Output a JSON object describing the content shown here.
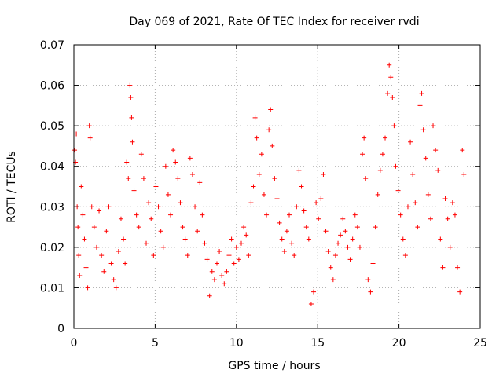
{
  "chart_data": {
    "type": "scatter",
    "title": "Day 069 of 2021, Rate Of TEC Index for receiver rvdi",
    "xlabel": "GPS time / hours",
    "ylabel": "ROTI / TECUs",
    "xlim": [
      0,
      25
    ],
    "ylim": [
      0,
      0.07
    ],
    "xticks": [
      "0",
      "5",
      "10",
      "15",
      "20",
      "25"
    ],
    "yticks": [
      "0",
      "0.01",
      "0.02",
      "0.03",
      "0.04",
      "0.05",
      "0.06",
      "0.07"
    ],
    "grid": true,
    "marker": "+",
    "color": "#ff0000",
    "series": [
      {
        "points": [
          [
            0.05,
            0.044
          ],
          [
            0.1,
            0.041
          ],
          [
            0.15,
            0.048
          ],
          [
            0.2,
            0.03
          ],
          [
            0.25,
            0.025
          ],
          [
            0.3,
            0.018
          ],
          [
            0.35,
            0.013
          ],
          [
            0.45,
            0.035
          ],
          [
            0.55,
            0.028
          ],
          [
            0.65,
            0.022
          ],
          [
            0.75,
            0.015
          ],
          [
            0.85,
            0.01
          ],
          [
            0.95,
            0.05
          ],
          [
            1.0,
            0.047
          ],
          [
            1.1,
            0.03
          ],
          [
            1.25,
            0.025
          ],
          [
            1.4,
            0.02
          ],
          [
            1.55,
            0.029
          ],
          [
            1.7,
            0.018
          ],
          [
            1.85,
            0.014
          ],
          [
            2.0,
            0.024
          ],
          [
            2.15,
            0.03
          ],
          [
            2.3,
            0.016
          ],
          [
            2.45,
            0.012
          ],
          [
            2.6,
            0.01
          ],
          [
            2.75,
            0.019
          ],
          [
            2.9,
            0.027
          ],
          [
            3.05,
            0.022
          ],
          [
            3.15,
            0.016
          ],
          [
            3.25,
            0.041
          ],
          [
            3.35,
            0.037
          ],
          [
            3.45,
            0.06
          ],
          [
            3.5,
            0.057
          ],
          [
            3.55,
            0.052
          ],
          [
            3.6,
            0.046
          ],
          [
            3.7,
            0.034
          ],
          [
            3.85,
            0.028
          ],
          [
            4.0,
            0.025
          ],
          [
            4.15,
            0.043
          ],
          [
            4.3,
            0.037
          ],
          [
            4.45,
            0.021
          ],
          [
            4.6,
            0.031
          ],
          [
            4.75,
            0.027
          ],
          [
            4.9,
            0.018
          ],
          [
            5.05,
            0.035
          ],
          [
            5.2,
            0.03
          ],
          [
            5.35,
            0.024
          ],
          [
            5.5,
            0.02
          ],
          [
            5.65,
            0.04
          ],
          [
            5.8,
            0.033
          ],
          [
            5.95,
            0.028
          ],
          [
            6.1,
            0.044
          ],
          [
            6.25,
            0.041
          ],
          [
            6.4,
            0.037
          ],
          [
            6.55,
            0.031
          ],
          [
            6.7,
            0.025
          ],
          [
            6.85,
            0.022
          ],
          [
            7.0,
            0.018
          ],
          [
            7.15,
            0.042
          ],
          [
            7.3,
            0.038
          ],
          [
            7.45,
            0.03
          ],
          [
            7.6,
            0.024
          ],
          [
            7.75,
            0.036
          ],
          [
            7.9,
            0.028
          ],
          [
            8.05,
            0.021
          ],
          [
            8.2,
            0.017
          ],
          [
            8.35,
            0.008
          ],
          [
            8.5,
            0.014
          ],
          [
            8.65,
            0.012
          ],
          [
            8.8,
            0.016
          ],
          [
            8.95,
            0.019
          ],
          [
            9.1,
            0.013
          ],
          [
            9.25,
            0.011
          ],
          [
            9.4,
            0.014
          ],
          [
            9.55,
            0.018
          ],
          [
            9.7,
            0.022
          ],
          [
            9.85,
            0.016
          ],
          [
            10.0,
            0.02
          ],
          [
            10.15,
            0.017
          ],
          [
            10.3,
            0.021
          ],
          [
            10.45,
            0.025
          ],
          [
            10.6,
            0.023
          ],
          [
            10.75,
            0.018
          ],
          [
            10.9,
            0.031
          ],
          [
            11.05,
            0.035
          ],
          [
            11.15,
            0.052
          ],
          [
            11.25,
            0.047
          ],
          [
            11.4,
            0.038
          ],
          [
            11.55,
            0.043
          ],
          [
            11.7,
            0.033
          ],
          [
            11.85,
            0.028
          ],
          [
            12.0,
            0.049
          ],
          [
            12.1,
            0.054
          ],
          [
            12.2,
            0.045
          ],
          [
            12.35,
            0.037
          ],
          [
            12.5,
            0.032
          ],
          [
            12.65,
            0.026
          ],
          [
            12.8,
            0.022
          ],
          [
            12.95,
            0.019
          ],
          [
            13.1,
            0.024
          ],
          [
            13.25,
            0.028
          ],
          [
            13.4,
            0.021
          ],
          [
            13.55,
            0.018
          ],
          [
            13.7,
            0.03
          ],
          [
            13.85,
            0.039
          ],
          [
            14.0,
            0.035
          ],
          [
            14.15,
            0.029
          ],
          [
            14.3,
            0.025
          ],
          [
            14.45,
            0.022
          ],
          [
            14.6,
            0.006
          ],
          [
            14.75,
            0.009
          ],
          [
            14.9,
            0.031
          ],
          [
            15.05,
            0.027
          ],
          [
            15.2,
            0.032
          ],
          [
            15.35,
            0.038
          ],
          [
            15.5,
            0.024
          ],
          [
            15.65,
            0.019
          ],
          [
            15.8,
            0.015
          ],
          [
            15.95,
            0.012
          ],
          [
            16.1,
            0.018
          ],
          [
            16.25,
            0.021
          ],
          [
            16.4,
            0.023
          ],
          [
            16.55,
            0.027
          ],
          [
            16.7,
            0.024
          ],
          [
            16.85,
            0.02
          ],
          [
            17.0,
            0.017
          ],
          [
            17.15,
            0.022
          ],
          [
            17.3,
            0.028
          ],
          [
            17.45,
            0.025
          ],
          [
            17.6,
            0.02
          ],
          [
            17.75,
            0.043
          ],
          [
            17.85,
            0.047
          ],
          [
            17.95,
            0.037
          ],
          [
            18.1,
            0.012
          ],
          [
            18.25,
            0.009
          ],
          [
            18.4,
            0.016
          ],
          [
            18.55,
            0.025
          ],
          [
            18.7,
            0.033
          ],
          [
            18.85,
            0.039
          ],
          [
            19.0,
            0.043
          ],
          [
            19.15,
            0.047
          ],
          [
            19.3,
            0.058
          ],
          [
            19.4,
            0.065
          ],
          [
            19.5,
            0.062
          ],
          [
            19.6,
            0.057
          ],
          [
            19.7,
            0.05
          ],
          [
            19.8,
            0.04
          ],
          [
            19.95,
            0.034
          ],
          [
            20.1,
            0.028
          ],
          [
            20.25,
            0.022
          ],
          [
            20.4,
            0.018
          ],
          [
            20.55,
            0.03
          ],
          [
            20.7,
            0.046
          ],
          [
            20.85,
            0.038
          ],
          [
            21.0,
            0.031
          ],
          [
            21.15,
            0.025
          ],
          [
            21.3,
            0.055
          ],
          [
            21.4,
            0.058
          ],
          [
            21.5,
            0.049
          ],
          [
            21.65,
            0.042
          ],
          [
            21.8,
            0.033
          ],
          [
            21.95,
            0.027
          ],
          [
            22.1,
            0.05
          ],
          [
            22.25,
            0.044
          ],
          [
            22.4,
            0.039
          ],
          [
            22.55,
            0.022
          ],
          [
            22.7,
            0.015
          ],
          [
            22.85,
            0.032
          ],
          [
            23.0,
            0.027
          ],
          [
            23.15,
            0.02
          ],
          [
            23.3,
            0.031
          ],
          [
            23.45,
            0.028
          ],
          [
            23.6,
            0.015
          ],
          [
            23.75,
            0.009
          ],
          [
            23.9,
            0.044
          ],
          [
            24.0,
            0.038
          ]
        ]
      }
    ]
  }
}
